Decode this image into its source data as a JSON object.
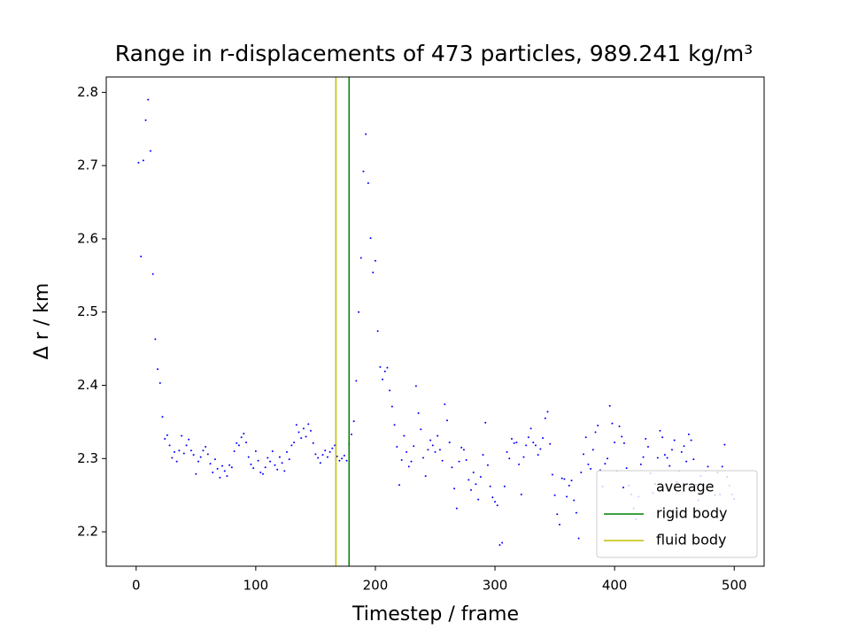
{
  "chart_data": {
    "type": "scatter",
    "title": "Range in r-displacements of 473 particles, 989.241 kg/m³",
    "xlabel": "Timestep / frame",
    "ylabel": "Δ r / km",
    "xlim": [
      -25,
      525
    ],
    "ylim": [
      2.153,
      2.821
    ],
    "xticks": [
      0,
      100,
      200,
      300,
      400,
      500
    ],
    "yticks": [
      2.2,
      2.3,
      2.4,
      2.5,
      2.6,
      2.7,
      2.8
    ],
    "legend": "lower right",
    "series": [
      {
        "name": "average",
        "color": "blue",
        "x": [
          2,
          4,
          6,
          8,
          10,
          12,
          14,
          16,
          18,
          20,
          22,
          24,
          26,
          28,
          30,
          32,
          34,
          36,
          38,
          40,
          42,
          44,
          46,
          48,
          50,
          52,
          54,
          56,
          58,
          60,
          62,
          64,
          66,
          68,
          70,
          72,
          74,
          76,
          78,
          80,
          82,
          84,
          86,
          88,
          90,
          92,
          94,
          96,
          98,
          100,
          102,
          104,
          106,
          108,
          110,
          112,
          114,
          116,
          118,
          120,
          122,
          124,
          126,
          128,
          130,
          132,
          134,
          136,
          138,
          140,
          142,
          144,
          146,
          148,
          150,
          152,
          154,
          156,
          158,
          160,
          162,
          164,
          166,
          168,
          170,
          172,
          174,
          176,
          178,
          180,
          182,
          184,
          186,
          188,
          190,
          192,
          194,
          196,
          198,
          200,
          202,
          204,
          206,
          208,
          210,
          212,
          214,
          216,
          218,
          220,
          222,
          224,
          226,
          228,
          230,
          232,
          234,
          236,
          238,
          240,
          242,
          244,
          246,
          248,
          250,
          252,
          254,
          256,
          258,
          260,
          262,
          264,
          266,
          268,
          270,
          272,
          274,
          276,
          278,
          280,
          282,
          284,
          286,
          288,
          290,
          292,
          294,
          296,
          298,
          300,
          302,
          304,
          306,
          308,
          310,
          312,
          314,
          316,
          318,
          320,
          322,
          324,
          326,
          328,
          330,
          332,
          334,
          336,
          338,
          340,
          342,
          344,
          346,
          348,
          350,
          352,
          354,
          356,
          358,
          360,
          362,
          364,
          366,
          368,
          370,
          372,
          374,
          376,
          378,
          380,
          382,
          384,
          386,
          388,
          390,
          392,
          394,
          396,
          398,
          400,
          402,
          404,
          406,
          408,
          410,
          412,
          414,
          416,
          418,
          420,
          422,
          424,
          426,
          428,
          430,
          432,
          434,
          436,
          438,
          440,
          442,
          444,
          446,
          448,
          450,
          452,
          454,
          456,
          458,
          460,
          462,
          464,
          466,
          468,
          470,
          472,
          474,
          476,
          478,
          480,
          482,
          484,
          486,
          488,
          490,
          492,
          494,
          496,
          498,
          500
        ],
        "values": [
          2.704,
          2.576,
          2.707,
          2.762,
          2.79,
          2.72,
          2.552,
          2.463,
          2.422,
          2.403,
          2.357,
          2.327,
          2.332,
          2.318,
          2.301,
          2.309,
          2.296,
          2.311,
          2.331,
          2.307,
          2.318,
          2.326,
          2.311,
          2.305,
          2.279,
          2.296,
          2.302,
          2.311,
          2.316,
          2.306,
          2.293,
          2.281,
          2.299,
          2.286,
          2.274,
          2.29,
          2.283,
          2.276,
          2.291,
          2.288,
          2.31,
          2.321,
          2.318,
          2.329,
          2.334,
          2.322,
          2.302,
          2.292,
          2.287,
          2.31,
          2.297,
          2.281,
          2.279,
          2.288,
          2.301,
          2.296,
          2.31,
          2.291,
          2.285,
          2.302,
          2.294,
          2.283,
          2.309,
          2.299,
          2.318,
          2.322,
          2.346,
          2.336,
          2.328,
          2.341,
          2.33,
          2.347,
          2.338,
          2.321,
          2.306,
          2.301,
          2.294,
          2.305,
          2.311,
          2.302,
          2.309,
          2.314,
          2.318,
          2.303,
          2.297,
          2.3,
          2.304,
          2.297,
          2.32,
          2.333,
          2.351,
          2.406,
          2.5,
          2.574,
          2.692,
          2.743,
          2.676,
          2.601,
          2.554,
          2.57,
          2.474,
          2.425,
          2.408,
          2.419,
          2.424,
          2.393,
          2.371,
          2.346,
          2.316,
          2.264,
          2.298,
          2.331,
          2.309,
          2.289,
          2.296,
          2.317,
          2.399,
          2.362,
          2.34,
          2.301,
          2.276,
          2.312,
          2.325,
          2.318,
          2.309,
          2.331,
          2.312,
          2.297,
          2.374,
          2.352,
          2.322,
          2.288,
          2.259,
          2.232,
          2.296,
          2.315,
          2.312,
          2.298,
          2.271,
          2.257,
          2.281,
          2.265,
          2.244,
          2.275,
          2.305,
          2.349,
          2.291,
          2.262,
          2.247,
          2.241,
          2.236,
          2.182,
          2.185,
          2.262,
          2.309,
          2.3,
          2.327,
          2.321,
          2.322,
          2.292,
          2.251,
          2.302,
          2.318,
          2.329,
          2.341,
          2.322,
          2.318,
          2.305,
          2.313,
          2.328,
          2.355,
          2.364,
          2.32,
          2.278,
          2.25,
          2.224,
          2.21,
          2.273,
          2.272,
          2.248,
          2.263,
          2.27,
          2.243,
          2.226,
          2.191,
          2.281,
          2.306,
          2.329,
          2.292,
          2.286,
          2.312,
          2.336,
          2.345,
          2.284,
          2.262,
          2.293,
          2.3,
          2.372,
          2.348,
          2.322,
          2.283,
          2.344,
          2.33,
          2.321,
          2.287,
          2.263,
          2.251,
          2.232,
          2.217,
          2.248,
          2.292,
          2.302,
          2.327,
          2.316,
          2.28,
          2.253,
          2.265,
          2.301,
          2.338,
          2.329,
          2.305,
          2.301,
          2.29,
          2.312,
          2.325,
          2.268,
          2.283,
          2.309,
          2.317,
          2.296,
          2.333,
          2.325,
          2.299,
          2.264,
          2.243,
          2.276,
          2.26,
          2.283,
          2.289,
          2.262,
          2.264,
          2.25,
          2.281,
          2.251,
          2.289,
          2.319,
          2.275,
          2.263,
          2.251,
          2.245
        ]
      }
    ],
    "vlines": [
      {
        "name": "rigid body",
        "x": 178,
        "color": "green"
      },
      {
        "name": "fluid body",
        "x": 167,
        "color": "#bfbf00"
      }
    ]
  }
}
